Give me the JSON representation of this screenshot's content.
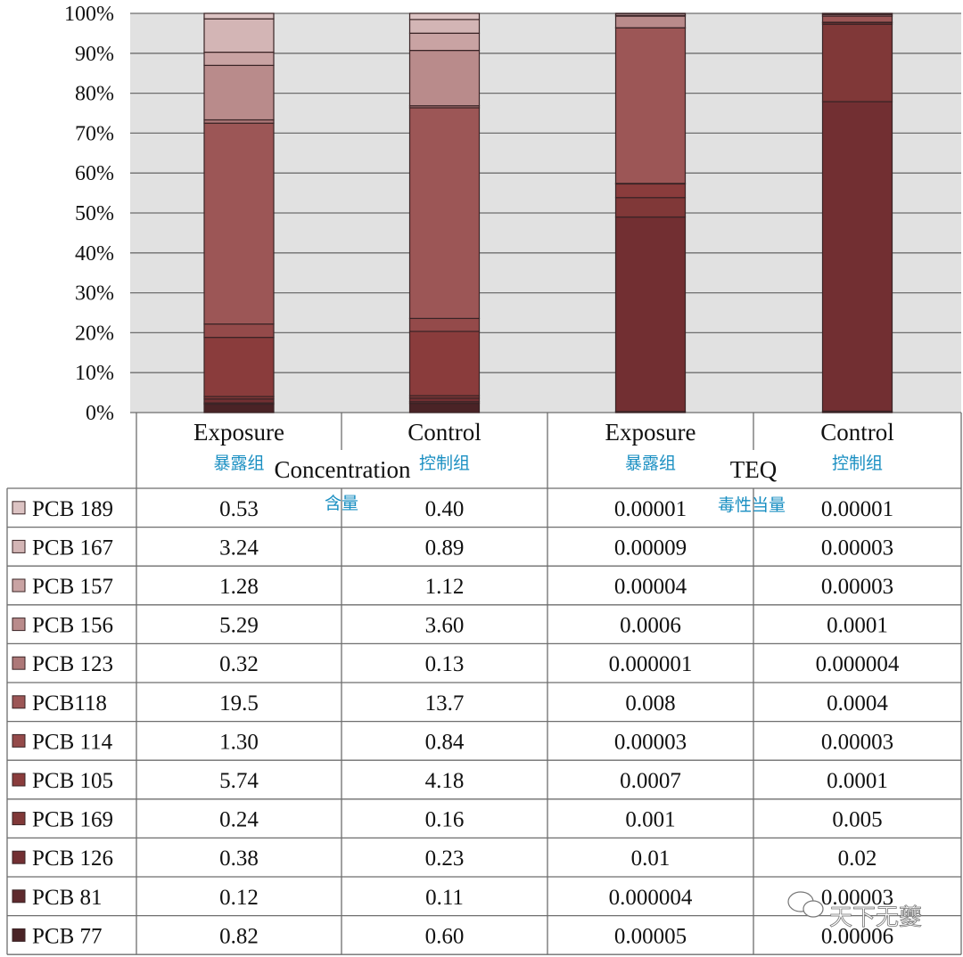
{
  "chart_data": {
    "type": "bar",
    "stacked": true,
    "percent": true,
    "ylim": [
      0,
      100
    ],
    "yticks": [
      "0%",
      "10%",
      "20%",
      "30%",
      "40%",
      "50%",
      "60%",
      "70%",
      "80%",
      "90%",
      "100%"
    ],
    "grid": true,
    "legend": "table-left",
    "groups": [
      {
        "label": "Concentration",
        "label_cn": "含量"
      },
      {
        "label": "TEQ",
        "label_cn": "毒性当量"
      }
    ],
    "categories": [
      {
        "label": "Exposure",
        "label_cn": "暴露组",
        "group": 0
      },
      {
        "label": "Control",
        "label_cn": "控制组",
        "group": 0
      },
      {
        "label": "Exposure",
        "label_cn": "暴露组",
        "group": 1
      },
      {
        "label": "Control",
        "label_cn": "控制组",
        "group": 1
      }
    ],
    "series": [
      {
        "name": "PCB 189",
        "color": "#dcc3c3",
        "values": [
          "0.53",
          "0.40",
          "0.00001",
          "0.00001"
        ]
      },
      {
        "name": "PCB 167",
        "color": "#d3b5b5",
        "values": [
          "3.24",
          "0.89",
          "0.00009",
          "0.00003"
        ]
      },
      {
        "name": "PCB 157",
        "color": "#c9a3a3",
        "values": [
          "1.28",
          "1.12",
          "0.00004",
          "0.00003"
        ]
      },
      {
        "name": "PCB 156",
        "color": "#b98b8b",
        "values": [
          "5.29",
          "3.60",
          "0.0006",
          "0.0001"
        ]
      },
      {
        "name": "PCB 123",
        "color": "#ad7878",
        "values": [
          "0.32",
          "0.13",
          "0.000001",
          "0.000004"
        ]
      },
      {
        "name": "PCB118",
        "color": "#9c5656",
        "values": [
          "19.5",
          "13.7",
          "0.008",
          "0.0004"
        ]
      },
      {
        "name": "PCB 114",
        "color": "#944a4a",
        "values": [
          "1.30",
          "0.84",
          "0.00003",
          "0.00003"
        ]
      },
      {
        "name": "PCB 105",
        "color": "#8a3c3c",
        "values": [
          "5.74",
          "4.18",
          "0.0007",
          "0.0001"
        ]
      },
      {
        "name": "PCB 169",
        "color": "#803838",
        "values": [
          "0.24",
          "0.16",
          "0.001",
          "0.005"
        ]
      },
      {
        "name": "PCB 126",
        "color": "#722f32",
        "values": [
          "0.38",
          "0.23",
          "0.01",
          "0.02"
        ]
      },
      {
        "name": "PCB 81",
        "color": "#5e2a2d",
        "values": [
          "0.12",
          "0.11",
          "0.000004",
          "0.00003"
        ]
      },
      {
        "name": "PCB 77",
        "color": "#4a2326",
        "values": [
          "0.82",
          "0.60",
          "0.00005",
          "0.00006"
        ]
      }
    ]
  },
  "watermark": {
    "text": "天下无夔",
    "icon": "wechat-icon"
  }
}
